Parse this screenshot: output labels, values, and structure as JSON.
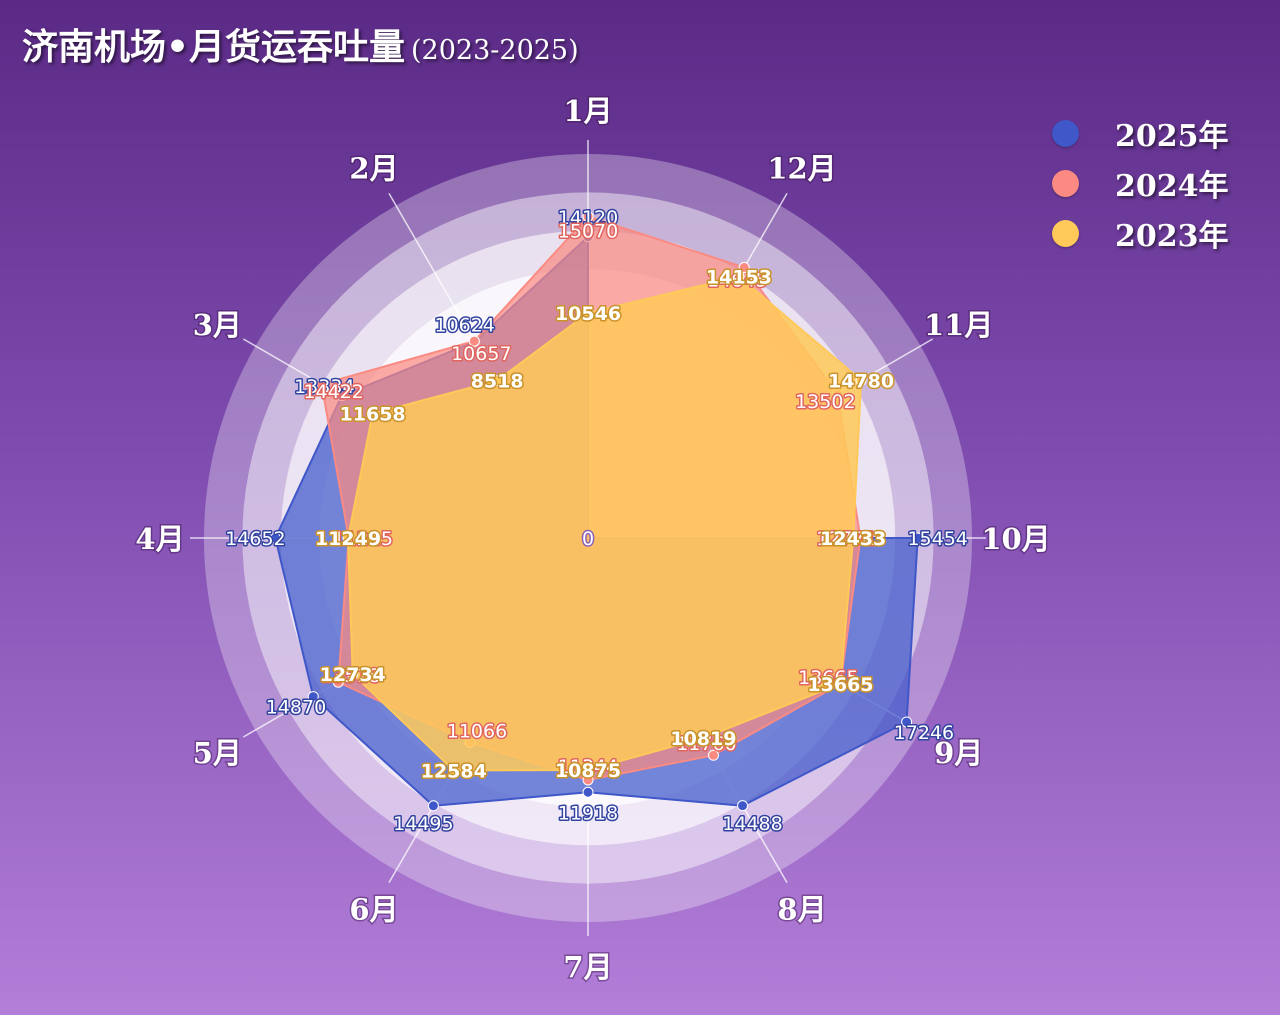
{
  "header": {
    "title": "济南机场•月货运吞吐量",
    "subtitle": "(2023-2025)"
  },
  "legend": [
    {
      "label": "2025年",
      "color": "#3f57c9"
    },
    {
      "label": "2024年",
      "color": "#fa8a82"
    },
    {
      "label": "2023年",
      "color": "#ffc95a"
    }
  ],
  "chart_data": {
    "type": "radar",
    "title": "济南机场•月货运吞吐量",
    "subtitle": "(2023-2025)",
    "categories": [
      "1月",
      "2月",
      "3月",
      "4月",
      "5月",
      "6月",
      "7月",
      "8月",
      "9月",
      "10月",
      "11月",
      "12月"
    ],
    "center_label": "0",
    "range": [
      0,
      18000
    ],
    "rings": 4,
    "series": [
      {
        "name": "2025年",
        "color": "#3f57c9",
        "values": [
          14120,
          10624,
          13334,
          14652,
          14870,
          14495,
          11918,
          14488,
          17246,
          15454,
          null,
          null
        ]
      },
      {
        "name": "2024年",
        "color": "#fa8a82",
        "values": [
          15070,
          10657,
          14422,
          11215,
          13518,
          11066,
          11344,
          11760,
          13665,
          12771,
          13502,
          14645
        ]
      },
      {
        "name": "2023年",
        "color": "#ffc95a",
        "values": [
          10546,
          8518,
          11658,
          11249,
          12734,
          12584,
          10875,
          10819,
          13665,
          12433,
          14780,
          14153
        ]
      }
    ],
    "legend_position": "top-right"
  }
}
